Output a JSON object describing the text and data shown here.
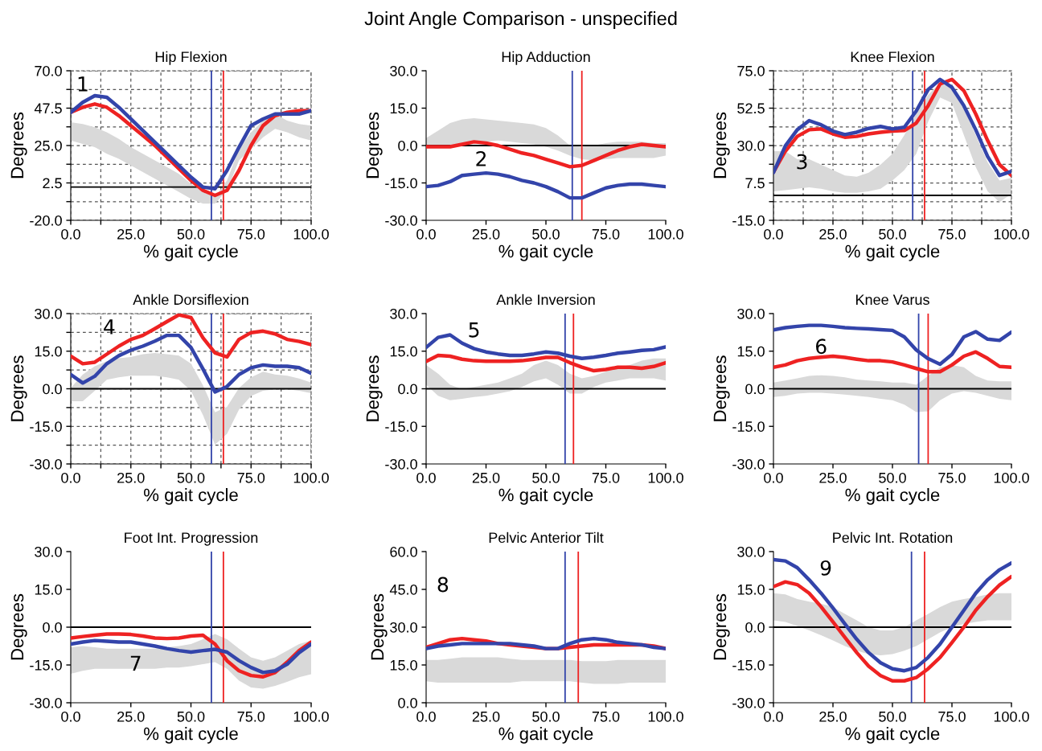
{
  "chart_data": [
    {
      "type": "line",
      "title": "Hip Flexion",
      "xlabel": "% gait cycle",
      "ylabel": "Degrees",
      "grid": true,
      "annotations": [
        "Joint Angle Comparison - unspecified",
        "1"
      ],
      "x": [
        0,
        5,
        10,
        15,
        20,
        25,
        30,
        35,
        40,
        45,
        50,
        55,
        60,
        65,
        70,
        75,
        80,
        85,
        90,
        95,
        100
      ],
      "xlim": [
        0,
        100
      ],
      "xticks": [
        {
          "value": 0,
          "label": "0.0"
        },
        {
          "value": 12.5,
          "label": null
        },
        {
          "value": 25,
          "label": "25.0"
        },
        {
          "value": 37.5,
          "label": null
        },
        {
          "value": 50,
          "label": "50.0"
        },
        {
          "value": 62.5,
          "label": null
        },
        {
          "value": 75,
          "label": "75.0"
        },
        {
          "value": 87.5,
          "label": null
        },
        {
          "value": 100,
          "label": "100.0"
        }
      ],
      "ylim": [
        -20,
        70
      ],
      "yticks": [
        {
          "value": -20,
          "label": "-20.0"
        },
        {
          "value": -8.75,
          "label": null
        },
        {
          "value": 2.5,
          "label": "2.5"
        },
        {
          "value": 13.75,
          "label": null
        },
        {
          "value": 25,
          "label": "25.0"
        },
        {
          "value": 36.25,
          "label": null
        },
        {
          "value": 47.5,
          "label": "47.5"
        },
        {
          "value": 58.75,
          "label": null
        },
        {
          "value": 70,
          "label": "70.0"
        }
      ],
      "series": [
        {
          "type": "area",
          "color": "#d9d9d9",
          "values": [
            null,
            null,
            null,
            null,
            null,
            null,
            null,
            null,
            null,
            null,
            null,
            null,
            null,
            null,
            null,
            null,
            null,
            null,
            null,
            null,
            null
          ],
          "lower": [
            28,
            26,
            24,
            20,
            17,
            13,
            9,
            5,
            1,
            -3,
            -7,
            -10,
            -10,
            -2,
            16,
            23,
            30,
            35,
            33,
            30,
            28
          ],
          "upper": [
            39,
            38,
            36,
            33,
            29,
            24,
            20,
            16,
            12,
            8,
            2,
            -3,
            -6,
            4,
            23,
            33,
            40,
            44,
            40,
            38,
            37
          ]
        },
        {
          "color": "#ee2222",
          "values": [
            45,
            48,
            50,
            48,
            43,
            37,
            31,
            25,
            18,
            11,
            4,
            -2,
            -5,
            -2,
            10,
            25,
            37,
            43,
            45,
            46,
            46
          ]
        },
        {
          "color": "#3344aa",
          "values": [
            45,
            51,
            55,
            54,
            48,
            41,
            34,
            27,
            20,
            13,
            6,
            0,
            -1,
            10,
            24,
            37,
            41,
            44,
            44,
            44,
            46
          ]
        }
      ],
      "ref_lines": [
        {
          "axis": "y",
          "value": 0,
          "color": "#000000"
        },
        {
          "axis": "x",
          "value": 58.5,
          "color": "#3344aa"
        },
        {
          "axis": "x",
          "value": 63.5,
          "color": "#ee2222"
        }
      ]
    },
    {
      "type": "line",
      "title": "Hip Adduction",
      "xlabel": "% gait cycle",
      "ylabel": "Degrees",
      "annotations": [
        "2"
      ],
      "x": [
        0,
        5,
        10,
        15,
        20,
        25,
        30,
        35,
        40,
        45,
        50,
        55,
        60,
        65,
        70,
        75,
        80,
        85,
        90,
        95,
        100
      ],
      "xlim": [
        0,
        100
      ],
      "xticks": [
        {
          "value": 0,
          "label": "0.0"
        },
        {
          "value": 25,
          "label": "25.0"
        },
        {
          "value": 50,
          "label": "50.0"
        },
        {
          "value": 75,
          "label": "75.0"
        },
        {
          "value": 100,
          "label": "100.0"
        }
      ],
      "ylim": [
        -30,
        30
      ],
      "yticks": [
        {
          "value": -30,
          "label": "-30.0"
        },
        {
          "value": -15,
          "label": "-15.0"
        },
        {
          "value": 0,
          "label": "0.0"
        },
        {
          "value": 15,
          "label": "15.0"
        },
        {
          "value": 30,
          "label": "30.0"
        }
      ],
      "series": [
        {
          "type": "area",
          "color": "#d9d9d9",
          "values": [
            null,
            null,
            null,
            null,
            null,
            null,
            null,
            null,
            null,
            null,
            null,
            null,
            null,
            null,
            null,
            null,
            null,
            null,
            null,
            null,
            null
          ],
          "lower": [
            -1,
            -1,
            0,
            1,
            1.5,
            1.5,
            2,
            1.5,
            1,
            0.5,
            -0.5,
            -2,
            -4,
            -5.5,
            -6,
            -5.5,
            -5,
            -5,
            -5,
            -5,
            -4
          ],
          "upper": [
            3,
            6,
            9,
            10.5,
            11,
            10.5,
            10,
            9.5,
            9,
            8.5,
            7,
            4,
            0,
            -0.5,
            0,
            1,
            1.5,
            1.5,
            1.5,
            1,
            1
          ]
        },
        {
          "color": "#ee2222",
          "values": [
            -0.5,
            -0.5,
            -0.5,
            0.5,
            1.5,
            1,
            0,
            -1.5,
            -3,
            -4,
            -5.5,
            -7,
            -8.5,
            -8,
            -6,
            -4,
            -2,
            -0.5,
            0.5,
            0,
            -0.5
          ]
        },
        {
          "color": "#3344aa",
          "values": [
            -16.5,
            -16,
            -14.5,
            -12,
            -11.5,
            -11,
            -11.5,
            -12.5,
            -14,
            -15,
            -16.5,
            -18.5,
            -21,
            -21,
            -19,
            -17,
            -16,
            -15.5,
            -15.5,
            -16,
            -16.5
          ]
        }
      ],
      "ref_lines": [
        {
          "axis": "y",
          "value": 0,
          "color": "#000000"
        },
        {
          "axis": "x",
          "value": 61,
          "color": "#3344aa"
        },
        {
          "axis": "x",
          "value": 65,
          "color": "#ee2222"
        }
      ]
    },
    {
      "type": "line",
      "title": "Knee Flexion",
      "xlabel": "% gait cycle",
      "ylabel": "Degrees",
      "grid": true,
      "annotations": [
        "3"
      ],
      "x": [
        0,
        5,
        10,
        15,
        20,
        25,
        30,
        35,
        40,
        45,
        50,
        55,
        60,
        65,
        70,
        75,
        80,
        85,
        90,
        95,
        100
      ],
      "xlim": [
        0,
        100
      ],
      "xticks": [
        {
          "value": 0,
          "label": "0.0"
        },
        {
          "value": 12.5,
          "label": null
        },
        {
          "value": 25,
          "label": "25.0"
        },
        {
          "value": 37.5,
          "label": null
        },
        {
          "value": 50,
          "label": "50.0"
        },
        {
          "value": 62.5,
          "label": null
        },
        {
          "value": 75,
          "label": "75.0"
        },
        {
          "value": 87.5,
          "label": null
        },
        {
          "value": 100,
          "label": "100.0"
        }
      ],
      "ylim": [
        -15,
        75
      ],
      "yticks": [
        {
          "value": -15,
          "label": "-15.0"
        },
        {
          "value": -3.75,
          "label": null
        },
        {
          "value": 7.5,
          "label": "7.5"
        },
        {
          "value": 18.75,
          "label": null
        },
        {
          "value": 30,
          "label": "30.0"
        },
        {
          "value": 41.25,
          "label": null
        },
        {
          "value": 52.5,
          "label": "52.5"
        },
        {
          "value": 63.75,
          "label": null
        },
        {
          "value": 75,
          "label": "75.0"
        }
      ],
      "series": [
        {
          "type": "area",
          "color": "#d9d9d9",
          "values": [
            null,
            null,
            null,
            null,
            null,
            null,
            null,
            null,
            null,
            null,
            null,
            null,
            null,
            null,
            null,
            null,
            null,
            null,
            null,
            null,
            null
          ],
          "lower": [
            2.4,
            3.2,
            4,
            4.8,
            4,
            2.4,
            1.6,
            1.6,
            2.4,
            4,
            8.9,
            15.3,
            25,
            44.4,
            58.9,
            55.6,
            36.3,
            17,
            2.4,
            -4,
            0.8
          ],
          "upper": [
            26.6,
            26.6,
            21.8,
            21.8,
            18.5,
            15.3,
            12,
            11.3,
            13.7,
            18.5,
            25,
            36.3,
            49.2,
            60.5,
            67.7,
            65,
            52.4,
            36.3,
            20,
            8.9,
            10.5
          ]
        },
        {
          "color": "#ee2222",
          "values": [
            14,
            26.6,
            35.5,
            39.5,
            40,
            37,
            35,
            35.5,
            37,
            38,
            38.7,
            39,
            43.5,
            54,
            67,
            69.8,
            63,
            49,
            33,
            18.5,
            12
          ]
        },
        {
          "color": "#3344aa",
          "values": [
            13.7,
            29.8,
            39.5,
            45,
            42.5,
            38.7,
            36.6,
            38,
            40.3,
            41.5,
            40,
            41,
            50.8,
            63.7,
            69.8,
            65,
            54,
            39.5,
            23.4,
            12,
            14.5
          ]
        }
      ],
      "ref_lines": [
        {
          "axis": "y",
          "value": 0,
          "color": "#000000"
        },
        {
          "axis": "x",
          "value": 58.5,
          "color": "#3344aa"
        },
        {
          "axis": "x",
          "value": 63.5,
          "color": "#ee2222"
        }
      ]
    },
    {
      "type": "line",
      "title": "Ankle Dorsiflexion",
      "xlabel": "% gait cycle",
      "ylabel": "Degrees",
      "grid": true,
      "annotations": [
        "4"
      ],
      "x": [
        0,
        5,
        10,
        15,
        20,
        25,
        30,
        35,
        40,
        45,
        50,
        55,
        60,
        65,
        70,
        75,
        80,
        85,
        90,
        95,
        100
      ],
      "xlim": [
        0,
        100
      ],
      "xticks": [
        {
          "value": 0,
          "label": "0.0"
        },
        {
          "value": 12.5,
          "label": null
        },
        {
          "value": 25,
          "label": "25.0"
        },
        {
          "value": 37.5,
          "label": null
        },
        {
          "value": 50,
          "label": "50.0"
        },
        {
          "value": 62.5,
          "label": null
        },
        {
          "value": 75,
          "label": "75.0"
        },
        {
          "value": 87.5,
          "label": null
        },
        {
          "value": 100,
          "label": "100.0"
        }
      ],
      "ylim": [
        -30,
        30
      ],
      "yticks": [
        {
          "value": -30,
          "label": "-30.0"
        },
        {
          "value": -22.5,
          "label": null
        },
        {
          "value": -15,
          "label": "-15.0"
        },
        {
          "value": -7.5,
          "label": null
        },
        {
          "value": 0,
          "label": "0.0"
        },
        {
          "value": 7.5,
          "label": null
        },
        {
          "value": 15,
          "label": "15.0"
        },
        {
          "value": 22.5,
          "label": null
        },
        {
          "value": 30,
          "label": "30.0"
        }
      ],
      "series": [
        {
          "type": "area",
          "color": "#d9d9d9",
          "values": [
            null,
            null,
            null,
            null,
            null,
            null,
            null,
            null,
            null,
            null,
            null,
            null,
            null,
            null,
            null,
            null,
            null,
            null,
            null,
            null,
            null
          ],
          "lower": [
            -5,
            -5,
            -0.8,
            3.6,
            4.6,
            5.2,
            5.2,
            5.2,
            4.6,
            3.6,
            -0.8,
            -10.5,
            -22.3,
            -18,
            -8.3,
            -2.9,
            -0.8,
            -0.2,
            -0.2,
            -0.8,
            -1.8
          ],
          "upper": [
            0.3,
            5.7,
            9,
            11,
            12.2,
            12.7,
            13.8,
            14.3,
            13.8,
            13.2,
            10,
            1.4,
            -9.4,
            -7.2,
            0.3,
            4.6,
            6.8,
            5.7,
            5.2,
            4.1,
            2.5
          ]
        },
        {
          "color": "#ee2222",
          "values": [
            13,
            10,
            10.6,
            13.8,
            17,
            19.7,
            21.3,
            24,
            26.8,
            29.5,
            28.4,
            20.3,
            14.3,
            12.7,
            19.7,
            22.4,
            23,
            21.9,
            19.7,
            18.9,
            17.6
          ]
        },
        {
          "color": "#3344aa",
          "values": [
            5.7,
            2.3,
            5,
            10,
            13.2,
            15.4,
            17,
            19,
            21.3,
            21.3,
            16.5,
            7.9,
            -1.3,
            0.9,
            5.7,
            8.4,
            9.5,
            9,
            9,
            8.4,
            6.2
          ]
        }
      ],
      "ref_lines": [
        {
          "axis": "y",
          "value": 0,
          "color": "#000000"
        },
        {
          "axis": "x",
          "value": 58.5,
          "color": "#3344aa"
        },
        {
          "axis": "x",
          "value": 63.5,
          "color": "#ee2222"
        }
      ]
    },
    {
      "type": "line",
      "title": "Ankle Inversion",
      "xlabel": "% gait cycle",
      "ylabel": "Degrees",
      "annotations": [
        "5"
      ],
      "x": [
        0,
        5,
        10,
        15,
        20,
        25,
        30,
        35,
        40,
        45,
        50,
        55,
        60,
        65,
        70,
        75,
        80,
        85,
        90,
        95,
        100
      ],
      "xlim": [
        0,
        100
      ],
      "xticks": [
        {
          "value": 0,
          "label": "0.0"
        },
        {
          "value": 25,
          "label": "25.0"
        },
        {
          "value": 50,
          "label": "50.0"
        },
        {
          "value": 75,
          "label": "75.0"
        },
        {
          "value": 100,
          "label": "100.0"
        }
      ],
      "ylim": [
        -30,
        30
      ],
      "yticks": [
        {
          "value": -30,
          "label": "-30.0"
        },
        {
          "value": -15,
          "label": "-15.0"
        },
        {
          "value": 0,
          "label": "0.0"
        },
        {
          "value": 15,
          "label": "15.0"
        },
        {
          "value": 30,
          "label": "30.0"
        }
      ],
      "series": [
        {
          "type": "area",
          "color": "#d9d9d9",
          "values": [
            null,
            null,
            null,
            null,
            null,
            null,
            null,
            null,
            null,
            null,
            null,
            null,
            null,
            null,
            null,
            null,
            null,
            null,
            null,
            null,
            null
          ],
          "lower": [
            1.6,
            -2.8,
            -4.6,
            -4,
            -3.3,
            -2.8,
            -1.9,
            -1,
            0.7,
            3,
            4.2,
            1.6,
            -1.9,
            -1.9,
            0.7,
            2.5,
            3.3,
            4.2,
            4.2,
            4.2,
            3.3
          ],
          "upper": [
            9.5,
            6,
            1.6,
            -0.2,
            0.7,
            1.6,
            2.5,
            4.2,
            6,
            9.5,
            11.2,
            9.5,
            6,
            4.2,
            5.1,
            6.8,
            8.6,
            9.5,
            11.2,
            12.1,
            12.1
          ]
        },
        {
          "color": "#ee2222",
          "values": [
            10.9,
            13.3,
            13,
            11.8,
            11.2,
            11,
            11,
            11,
            11.2,
            11.8,
            12.5,
            12.5,
            10.4,
            8.6,
            7.2,
            7.7,
            8.6,
            8.6,
            8.2,
            8.9,
            10.4
          ]
        },
        {
          "color": "#3344aa",
          "values": [
            16.5,
            20.5,
            21.5,
            18.2,
            16,
            14.7,
            13.9,
            13.3,
            13.3,
            13.9,
            14.7,
            14.2,
            13,
            12.1,
            12.6,
            13.3,
            14.2,
            14.7,
            15.3,
            15.6,
            16.7
          ]
        }
      ],
      "ref_lines": [
        {
          "axis": "y",
          "value": 0,
          "color": "#000000"
        },
        {
          "axis": "x",
          "value": 58,
          "color": "#3344aa"
        },
        {
          "axis": "x",
          "value": 61.5,
          "color": "#ee2222"
        }
      ]
    },
    {
      "type": "line",
      "title": "Knee Varus",
      "xlabel": "% gait cycle",
      "ylabel": "Degrees",
      "annotations": [
        "6"
      ],
      "x": [
        0,
        5,
        10,
        15,
        20,
        25,
        30,
        35,
        40,
        45,
        50,
        55,
        60,
        65,
        70,
        75,
        80,
        85,
        90,
        95,
        100
      ],
      "xlim": [
        0,
        100
      ],
      "xticks": [
        {
          "value": 0,
          "label": "0.0"
        },
        {
          "value": 25,
          "label": "25.0"
        },
        {
          "value": 50,
          "label": "50.0"
        },
        {
          "value": 75,
          "label": "75.0"
        },
        {
          "value": 100,
          "label": "100.0"
        }
      ],
      "ylim": [
        -30,
        30
      ],
      "yticks": [
        {
          "value": -30,
          "label": "-30.0"
        },
        {
          "value": -15,
          "label": "-15.0"
        },
        {
          "value": 0,
          "label": "0.0"
        },
        {
          "value": 15,
          "label": "15.0"
        },
        {
          "value": 30,
          "label": "30.0"
        }
      ],
      "series": [
        {
          "type": "area",
          "color": "#d9d9d9",
          "values": [
            null,
            null,
            null,
            null,
            null,
            null,
            null,
            null,
            null,
            null,
            null,
            null,
            null,
            null,
            null,
            null,
            null,
            null,
            null,
            null,
            null
          ],
          "lower": [
            -3.3,
            -2.8,
            -1.9,
            -1.6,
            -1.6,
            -1.9,
            -2.3,
            -2.8,
            -3.3,
            -4,
            -4.6,
            -6.3,
            -9.3,
            -9,
            -4.6,
            -1.9,
            -1,
            -1.6,
            -2.8,
            -4,
            -4.6
          ],
          "upper": [
            2.5,
            3.3,
            4.2,
            5.1,
            5.4,
            5.1,
            4.6,
            3.7,
            3.3,
            3,
            2.5,
            2.5,
            1.6,
            5.1,
            8.6,
            9.5,
            8.6,
            5.1,
            3.3,
            3,
            3
          ]
        },
        {
          "color": "#ee2222",
          "values": [
            8.6,
            9.5,
            11.2,
            12.1,
            12.6,
            13,
            12.5,
            11.8,
            11.2,
            11.2,
            10.7,
            9.5,
            8.1,
            6.8,
            6.8,
            9.5,
            13,
            14.7,
            12.1,
            8.9,
            8.6
          ]
        },
        {
          "color": "#3344aa",
          "values": [
            23.5,
            24.4,
            24.9,
            25.3,
            25.3,
            24.9,
            24.4,
            24.1,
            23.9,
            23.6,
            23.3,
            20.7,
            15.5,
            12,
            9.8,
            13.7,
            20.7,
            22.8,
            19.8,
            19.3,
            22.6
          ]
        }
      ],
      "ref_lines": [
        {
          "axis": "y",
          "value": 0,
          "color": "#000000"
        },
        {
          "axis": "x",
          "value": 61,
          "color": "#3344aa"
        },
        {
          "axis": "x",
          "value": 65,
          "color": "#ee2222"
        }
      ]
    },
    {
      "type": "line",
      "title": "Foot Int. Progression",
      "xlabel": "% gait cycle",
      "ylabel": "Degrees",
      "annotations": [
        "7"
      ],
      "x": [
        0,
        5,
        10,
        15,
        20,
        25,
        30,
        35,
        40,
        45,
        50,
        55,
        60,
        65,
        70,
        75,
        80,
        85,
        90,
        95,
        100
      ],
      "xlim": [
        0,
        100
      ],
      "xticks": [
        {
          "value": 0,
          "label": "0.0"
        },
        {
          "value": 25,
          "label": "25.0"
        },
        {
          "value": 50,
          "label": "50.0"
        },
        {
          "value": 75,
          "label": "75.0"
        },
        {
          "value": 100,
          "label": "100.0"
        }
      ],
      "ylim": [
        -30,
        30
      ],
      "yticks": [
        {
          "value": -30,
          "label": "-30.0"
        },
        {
          "value": -15,
          "label": "-15.0"
        },
        {
          "value": 0,
          "label": "0.0"
        },
        {
          "value": 15,
          "label": "15.0"
        },
        {
          "value": 30,
          "label": "30.0"
        }
      ],
      "series": [
        {
          "type": "area",
          "color": "#d9d9d9",
          "values": [
            null,
            null,
            null,
            null,
            null,
            null,
            null,
            null,
            null,
            null,
            null,
            null,
            null,
            null,
            null,
            null,
            null,
            null,
            null,
            null,
            null
          ],
          "lower": [
            -18.5,
            -17.3,
            -16.5,
            -16.5,
            -16.5,
            -16.5,
            -16.5,
            -16.5,
            -16,
            -16,
            -15.5,
            -14.7,
            -13.9,
            -16.5,
            -21.2,
            -23.9,
            -24.4,
            -23.3,
            -21.7,
            -19.9,
            -18.7
          ],
          "upper": [
            -8,
            -7.5,
            -8,
            -8.5,
            -8.5,
            -8.5,
            -8.5,
            -8.5,
            -8,
            -7.5,
            -6.7,
            -4.8,
            -2.7,
            -4.8,
            -8.5,
            -12,
            -13.3,
            -12,
            -9.3,
            -6.7,
            -5.3
          ]
        },
        {
          "color": "#ee2222",
          "values": [
            -4.3,
            -3.7,
            -3.2,
            -2.7,
            -2.7,
            -2.9,
            -3.5,
            -4.3,
            -4.5,
            -4.3,
            -3.5,
            -3.2,
            -6.7,
            -13.3,
            -17.3,
            -19.2,
            -19.7,
            -18,
            -13.9,
            -9.3,
            -5.9
          ]
        },
        {
          "color": "#3344aa",
          "values": [
            -6.7,
            -5.9,
            -5.3,
            -5.6,
            -5.9,
            -5.9,
            -6.7,
            -7.5,
            -8.5,
            -9.3,
            -9.9,
            -9.3,
            -8.8,
            -9.9,
            -13.3,
            -16,
            -18,
            -17.3,
            -14.7,
            -10.1,
            -6.7
          ]
        }
      ],
      "ref_lines": [
        {
          "axis": "y",
          "value": 0,
          "color": "#000000"
        },
        {
          "axis": "x",
          "value": 58.5,
          "color": "#3344aa"
        },
        {
          "axis": "x",
          "value": 63.5,
          "color": "#ee2222"
        }
      ]
    },
    {
      "type": "line",
      "title": "Pelvic Anterior Tilt",
      "xlabel": "% gait cycle",
      "ylabel": "Degrees",
      "annotations": [
        "8"
      ],
      "x": [
        0,
        5,
        10,
        15,
        20,
        25,
        30,
        35,
        40,
        45,
        50,
        55,
        60,
        65,
        70,
        75,
        80,
        85,
        90,
        95,
        100
      ],
      "xlim": [
        0,
        100
      ],
      "xticks": [
        {
          "value": 0,
          "label": "0.0"
        },
        {
          "value": 25,
          "label": "25.0"
        },
        {
          "value": 50,
          "label": "50.0"
        },
        {
          "value": 75,
          "label": "75.0"
        },
        {
          "value": 100,
          "label": "100.0"
        }
      ],
      "ylim": [
        0,
        60
      ],
      "yticks": [
        {
          "value": 0,
          "label": "0.0"
        },
        {
          "value": 15,
          "label": "15.0"
        },
        {
          "value": 30,
          "label": "30.0"
        },
        {
          "value": 45,
          "label": "45.0"
        },
        {
          "value": 60,
          "label": "60.0"
        }
      ],
      "series": [
        {
          "type": "area",
          "color": "#d9d9d9",
          "values": [
            null,
            null,
            null,
            null,
            null,
            null,
            null,
            null,
            null,
            null,
            null,
            null,
            null,
            null,
            null,
            null,
            null,
            null,
            null,
            null,
            null
          ],
          "lower": [
            8.5,
            8,
            8,
            8,
            8,
            8,
            8,
            8,
            8.5,
            8.5,
            8.5,
            8.5,
            8.5,
            8,
            7.5,
            7.5,
            7.5,
            8,
            8,
            8,
            8
          ],
          "upper": [
            17,
            17,
            17.5,
            18,
            18,
            18,
            18,
            17.5,
            17,
            17,
            17,
            17,
            17,
            16.5,
            16.5,
            16.5,
            17,
            17,
            17,
            17,
            17
          ]
        },
        {
          "color": "#ee2222",
          "values": [
            22,
            23.5,
            25,
            25.5,
            25,
            24.5,
            23.5,
            23,
            22.5,
            22,
            21.5,
            21.5,
            22,
            22.5,
            23,
            23,
            23,
            23,
            23,
            22.5,
            21.5
          ]
        },
        {
          "color": "#3344aa",
          "values": [
            21.5,
            22.5,
            23,
            23.5,
            23.5,
            23.5,
            23.5,
            23.5,
            23,
            22.5,
            21.5,
            21.5,
            23.5,
            25,
            25.5,
            25,
            24,
            23.5,
            23,
            22,
            21.5
          ]
        }
      ],
      "ref_lines": [
        {
          "axis": "x",
          "value": 58,
          "color": "#3344aa"
        },
        {
          "axis": "x",
          "value": 63.5,
          "color": "#ee2222"
        }
      ]
    },
    {
      "type": "line",
      "title": "Pelvic Int. Rotation",
      "xlabel": "% gait cycle",
      "ylabel": "Degrees",
      "annotations": [
        "9"
      ],
      "x": [
        0,
        5,
        10,
        15,
        20,
        25,
        30,
        35,
        40,
        45,
        50,
        55,
        60,
        65,
        70,
        75,
        80,
        85,
        90,
        95,
        100
      ],
      "xlim": [
        0,
        100
      ],
      "xticks": [
        {
          "value": 0,
          "label": "0.0"
        },
        {
          "value": 25,
          "label": "25.0"
        },
        {
          "value": 50,
          "label": "50.0"
        },
        {
          "value": 75,
          "label": "75.0"
        },
        {
          "value": 100,
          "label": "100.0"
        }
      ],
      "ylim": [
        -30,
        30
      ],
      "yticks": [
        {
          "value": -30,
          "label": "-30.0"
        },
        {
          "value": -15,
          "label": "-15.0"
        },
        {
          "value": 0,
          "label": "0.0"
        },
        {
          "value": 15,
          "label": "15.0"
        },
        {
          "value": 30,
          "label": "30.0"
        }
      ],
      "series": [
        {
          "type": "area",
          "color": "#d9d9d9",
          "values": [
            null,
            null,
            null,
            null,
            null,
            null,
            null,
            null,
            null,
            null,
            null,
            null,
            null,
            null,
            null,
            null,
            null,
            null,
            null,
            null,
            null
          ],
          "lower": [
            2.7,
            2.1,
            0.5,
            -1.3,
            -3.2,
            -5.3,
            -7.5,
            -9.3,
            -10.7,
            -11.2,
            -10.7,
            -9.3,
            -7.5,
            -4.8,
            -2.1,
            0,
            1.3,
            2.1,
            2.7,
            2.7,
            2.7
          ],
          "upper": [
            13.5,
            13,
            11.2,
            10.1,
            9.3,
            8,
            5.3,
            2.7,
            0,
            -1.3,
            -1.3,
            0,
            2.7,
            5.3,
            8,
            10.1,
            11.2,
            12,
            13,
            13.5,
            13.5
          ]
        },
        {
          "color": "#ee2222",
          "values": [
            16.1,
            18,
            16.9,
            13.5,
            8.1,
            2.1,
            -4,
            -10.1,
            -15.5,
            -19.2,
            -21.3,
            -21.3,
            -20,
            -16.5,
            -12,
            -6.1,
            0,
            6.7,
            12.1,
            16.7,
            20.1
          ]
        },
        {
          "color": "#3344aa",
          "values": [
            26.8,
            26.3,
            23.6,
            18.8,
            13.5,
            7.6,
            1.3,
            -4.8,
            -10.1,
            -14.1,
            -16.5,
            -17.3,
            -16,
            -12,
            -6.7,
            0,
            6.7,
            13.5,
            18.8,
            22.8,
            25.5
          ]
        }
      ],
      "ref_lines": [
        {
          "axis": "y",
          "value": 0,
          "color": "#000000"
        },
        {
          "axis": "x",
          "value": 58,
          "color": "#3344aa"
        },
        {
          "axis": "x",
          "value": 63.5,
          "color": "#ee2222"
        }
      ]
    }
  ]
}
